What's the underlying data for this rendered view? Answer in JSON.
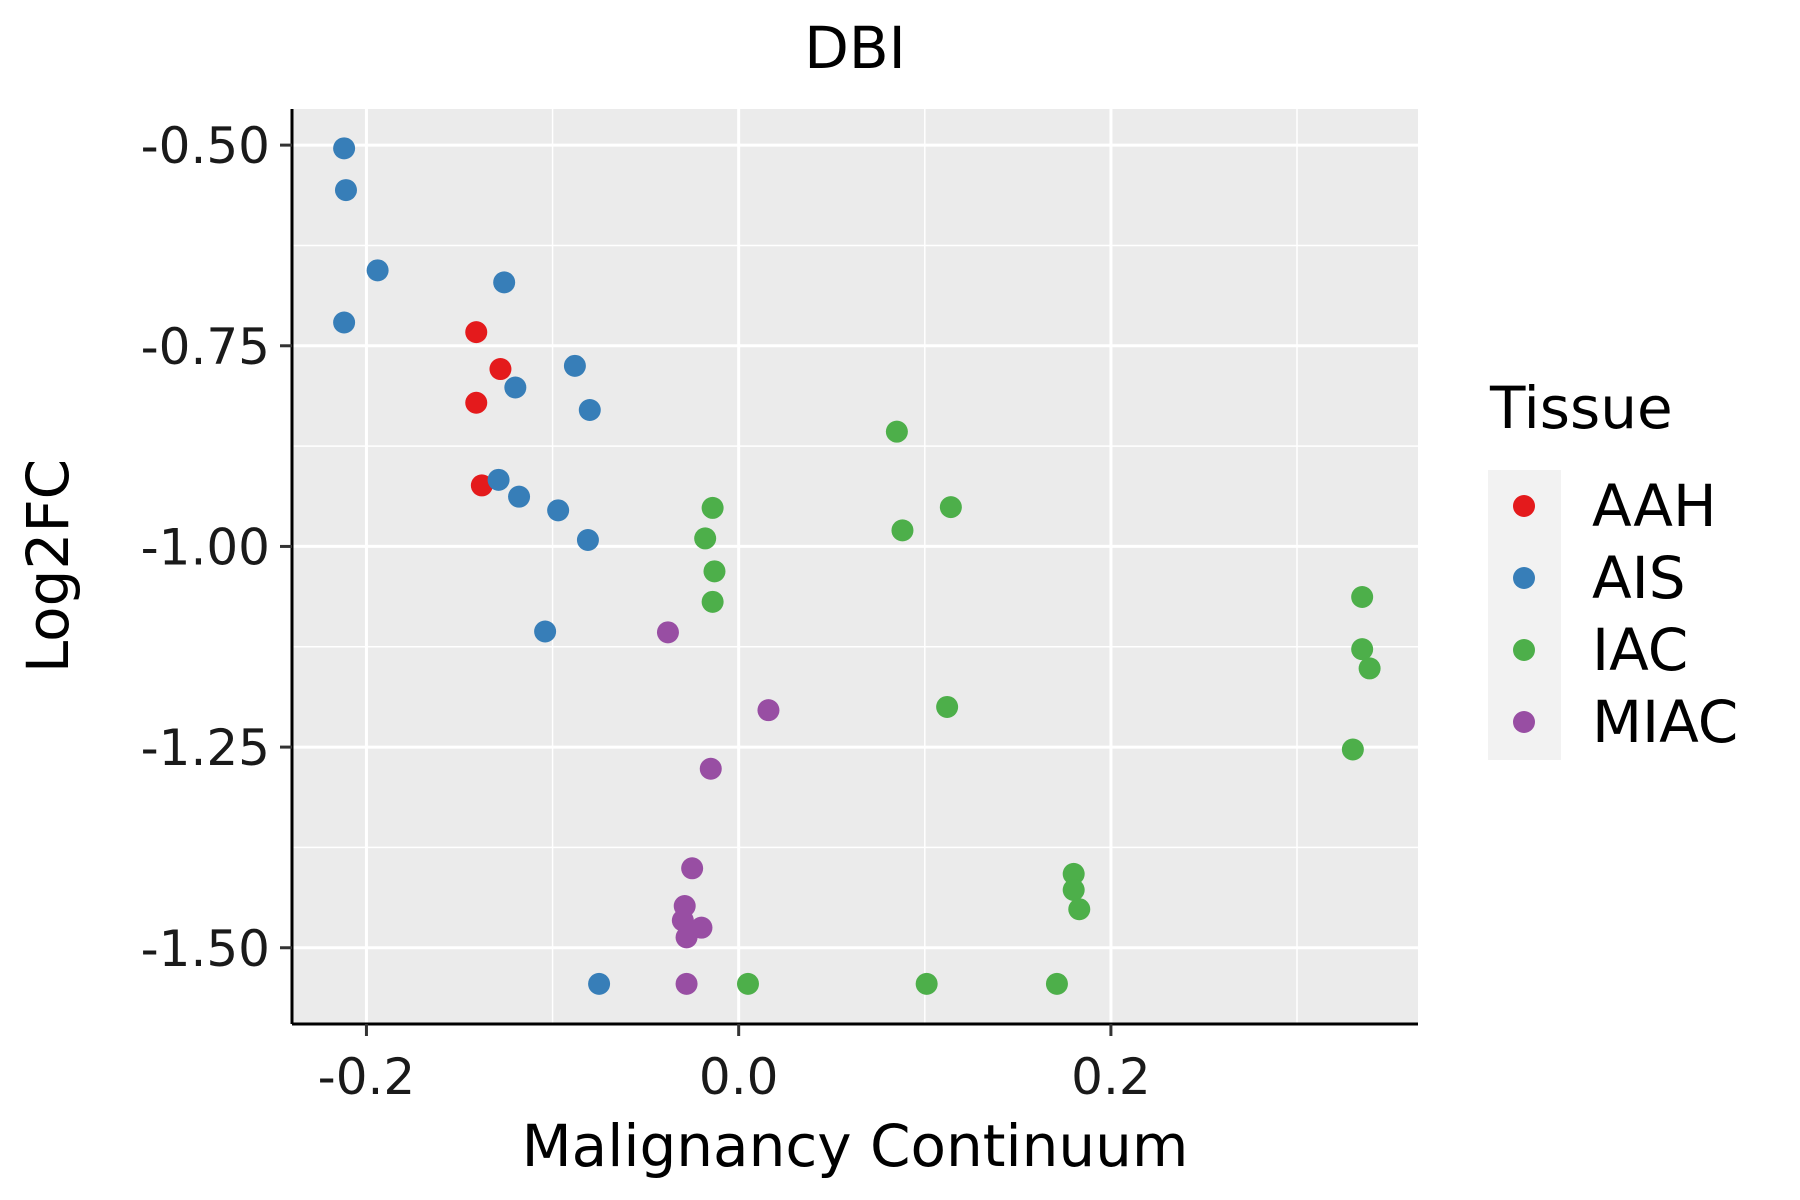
{
  "chart_data": {
    "type": "scatter",
    "title": "DBI",
    "xlabel": "Malignancy Continuum",
    "ylabel": "Log2FC",
    "xlim": [
      -0.24,
      0.365
    ],
    "ylim": [
      -1.595,
      -0.455
    ],
    "xticks": [
      -0.2,
      0.0,
      0.2
    ],
    "xtick_labels": [
      "-0.2",
      "0.0",
      "0.2"
    ],
    "yticks": [
      -0.5,
      -0.75,
      -1.0,
      -1.25,
      -1.5
    ],
    "ytick_labels": [
      "-0.50",
      "-0.75",
      "-1.00",
      "-1.25",
      "-1.50"
    ],
    "grid": true,
    "legend": {
      "title": "Tissue",
      "position": "right"
    },
    "series": [
      {
        "name": "AAH",
        "color": "#E41A1C",
        "points": [
          [
            -0.141,
            -0.733
          ],
          [
            -0.128,
            -0.779
          ],
          [
            -0.141,
            -0.821
          ],
          [
            -0.138,
            -0.924
          ]
        ]
      },
      {
        "name": "AIS",
        "color": "#377EB8",
        "points": [
          [
            -0.212,
            -0.504
          ],
          [
            -0.211,
            -0.556
          ],
          [
            -0.194,
            -0.656
          ],
          [
            -0.126,
            -0.671
          ],
          [
            -0.212,
            -0.721
          ],
          [
            -0.088,
            -0.775
          ],
          [
            -0.12,
            -0.802
          ],
          [
            -0.08,
            -0.83
          ],
          [
            -0.129,
            -0.917
          ],
          [
            -0.118,
            -0.938
          ],
          [
            -0.097,
            -0.955
          ],
          [
            -0.081,
            -0.992
          ],
          [
            -0.104,
            -1.106
          ],
          [
            -0.075,
            -1.545
          ]
        ]
      },
      {
        "name": "IAC",
        "color": "#4DAF4A",
        "points": [
          [
            0.085,
            -0.857
          ],
          [
            0.114,
            -0.951
          ],
          [
            -0.014,
            -0.952
          ],
          [
            0.088,
            -0.98
          ],
          [
            -0.018,
            -0.99
          ],
          [
            -0.013,
            -1.031
          ],
          [
            -0.014,
            -1.069
          ],
          [
            0.335,
            -1.063
          ],
          [
            0.335,
            -1.128
          ],
          [
            0.339,
            -1.152
          ],
          [
            0.112,
            -1.2
          ],
          [
            0.33,
            -1.253
          ],
          [
            0.18,
            -1.408
          ],
          [
            0.18,
            -1.428
          ],
          [
            0.183,
            -1.452
          ],
          [
            0.005,
            -1.545
          ],
          [
            0.101,
            -1.545
          ],
          [
            0.171,
            -1.545
          ]
        ]
      },
      {
        "name": "MIAC",
        "color": "#984EA3",
        "points": [
          [
            -0.038,
            -1.107
          ],
          [
            0.016,
            -1.204
          ],
          [
            -0.015,
            -1.277
          ],
          [
            -0.025,
            -1.401
          ],
          [
            -0.029,
            -1.448
          ],
          [
            -0.03,
            -1.466
          ],
          [
            -0.02,
            -1.475
          ],
          [
            -0.028,
            -1.487
          ],
          [
            -0.028,
            -1.545
          ]
        ]
      }
    ]
  }
}
